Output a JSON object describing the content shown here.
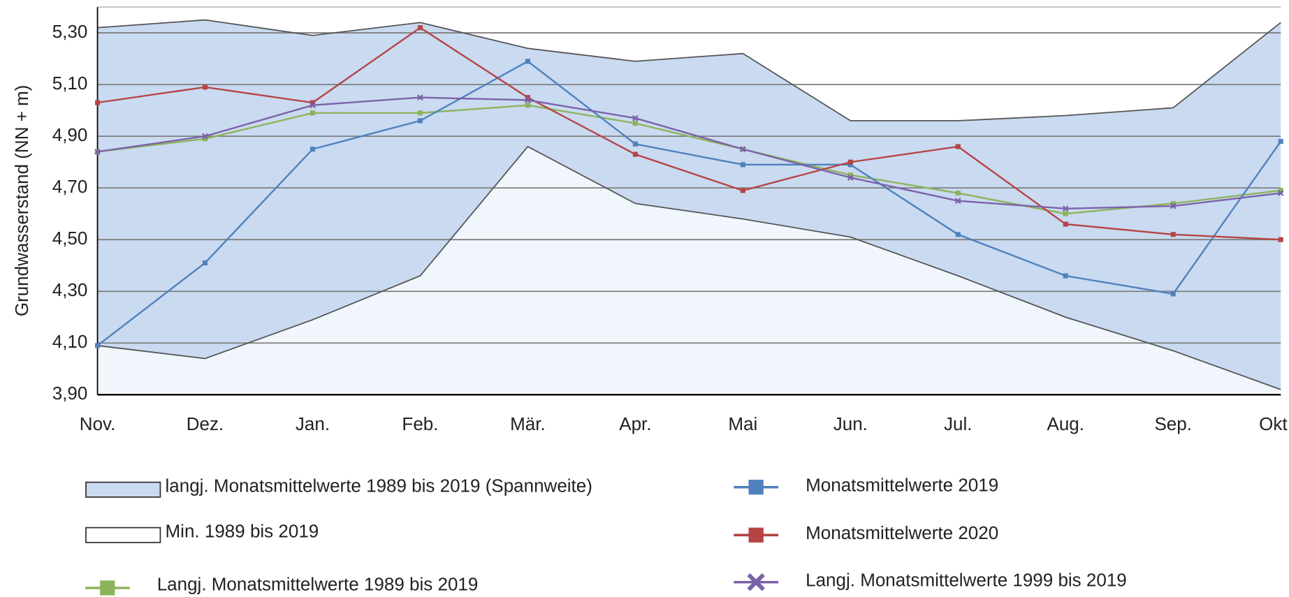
{
  "chart_data": {
    "type": "line",
    "y_label": "Grundwasserstand  (NN + m)",
    "categories": [
      "Nov.",
      "Dez.",
      "Jan.",
      "Feb.",
      "Mär.",
      "Apr.",
      "Mai",
      "Jun.",
      "Jul.",
      "Aug.",
      "Sep.",
      "Okt"
    ],
    "ylim": [
      3.9,
      5.4
    ],
    "yticks": [
      {
        "value": 3.9,
        "label": "3,90"
      },
      {
        "value": 4.1,
        "label": "4,10"
      },
      {
        "value": 4.3,
        "label": "4,30"
      },
      {
        "value": 4.5,
        "label": "4,50"
      },
      {
        "value": 4.7,
        "label": "4,70"
      },
      {
        "value": 4.9,
        "label": "4,90"
      },
      {
        "value": 5.1,
        "label": "5,10"
      },
      {
        "value": 5.3,
        "label": "5,30"
      }
    ],
    "grid": true,
    "series": [
      {
        "name": "langj. Monatsmittelwerte 1989 bis 2019 (Spannweite)",
        "kind": "area_max",
        "color": "#c9daf1",
        "values": [
          5.32,
          5.35,
          5.29,
          5.34,
          5.24,
          5.19,
          5.22,
          4.96,
          4.96,
          4.98,
          5.01,
          5.34
        ]
      },
      {
        "name": "Min. 1989 bis 2019",
        "kind": "area_min",
        "color": "#ffffff",
        "values": [
          4.09,
          4.04,
          4.19,
          4.36,
          4.86,
          4.64,
          4.58,
          4.51,
          4.36,
          4.2,
          4.07,
          3.92
        ]
      },
      {
        "name": "Langj. Monatsmittelwerte 1989 bis 2019",
        "kind": "line",
        "marker": "square",
        "color": "#8db35a",
        "values": [
          4.84,
          4.89,
          4.99,
          4.99,
          5.02,
          4.95,
          4.85,
          4.75,
          4.68,
          4.6,
          4.64,
          4.69
        ]
      },
      {
        "name": "Monatsmittelwerte 2019",
        "kind": "line",
        "marker": "square",
        "color": "#4f81bd",
        "values": [
          4.09,
          4.41,
          4.85,
          4.96,
          5.19,
          4.87,
          4.79,
          4.79,
          4.52,
          4.36,
          4.29,
          4.88
        ]
      },
      {
        "name": "Monatsmittelwerte 2020",
        "kind": "line",
        "marker": "square",
        "color": "#b54444",
        "values": [
          5.03,
          5.09,
          5.03,
          5.32,
          5.05,
          4.83,
          4.69,
          4.8,
          4.86,
          4.56,
          4.52,
          4.5
        ]
      },
      {
        "name": "Langj. Monatsmittelwerte 1999 bis 2019",
        "kind": "line",
        "marker": "x",
        "color": "#7b62a8",
        "values": [
          4.84,
          4.9,
          5.02,
          5.05,
          5.04,
          4.97,
          4.85,
          4.74,
          4.65,
          4.62,
          4.63,
          4.68
        ]
      }
    ]
  }
}
